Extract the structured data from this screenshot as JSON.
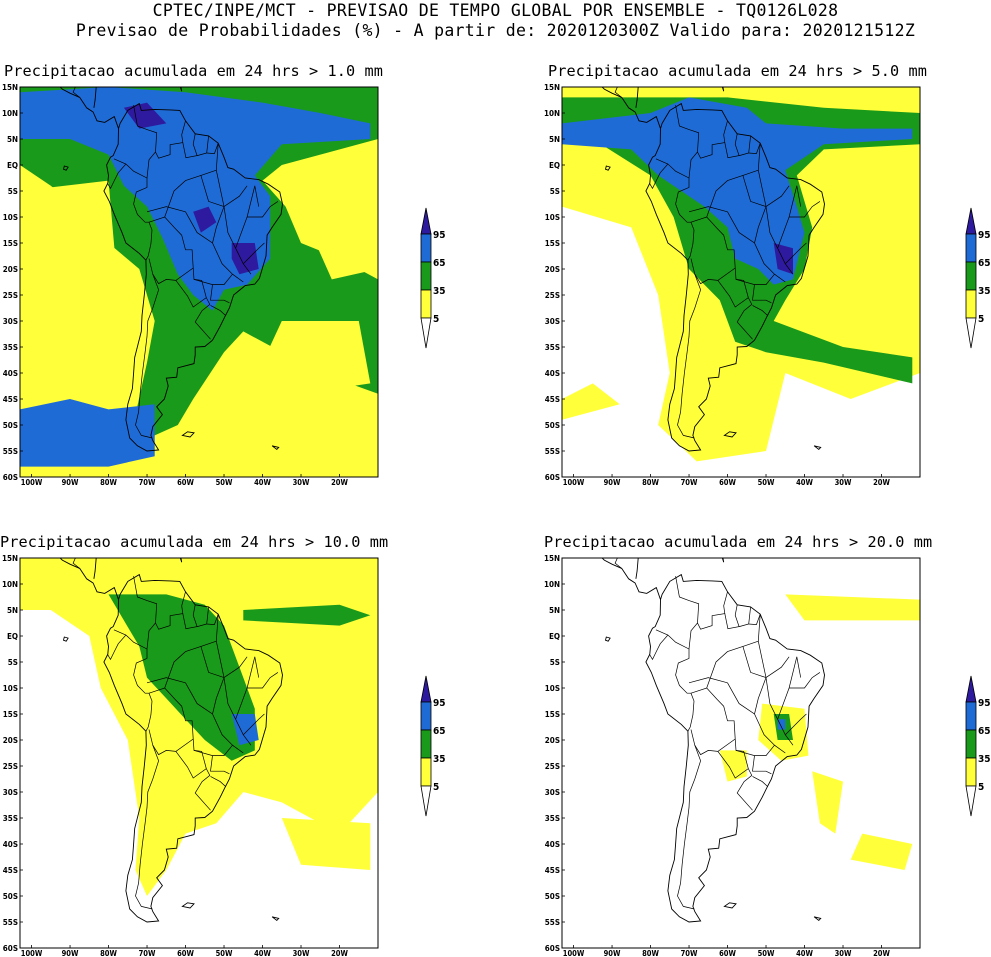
{
  "header": {
    "line1": "CPTEC/INPE/MCT - PREVISAO DE TEMPO GLOBAL POR ENSEMBLE - TQ0126L028",
    "line2": "Previsao de Probabilidades (%) -  A partir de: 2020120300Z  Valido para: 2020121512Z"
  },
  "colors": {
    "c5": "#ffff3a",
    "c35": "#1a9a1a",
    "c65": "#1f6bd6",
    "c95": "#2e1a9e",
    "coast": "#000000"
  },
  "axes": {
    "lat_labels": [
      "15N",
      "10N",
      "5N",
      "EQ",
      "5S",
      "10S",
      "15S",
      "20S",
      "25S",
      "30S",
      "35S",
      "40S",
      "45S",
      "50S",
      "55S",
      "60S"
    ],
    "lon_labels": [
      "100W",
      "90W",
      "80W",
      "70W",
      "60W",
      "50W",
      "40W",
      "30W",
      "20W"
    ]
  },
  "colorbar": {
    "levels": [
      "95",
      "65",
      "35",
      "5"
    ]
  },
  "panels": [
    {
      "title": "Precipitacao acumulada em 24 hrs > 1.0 mm"
    },
    {
      "title": "Precipitacao acumulada em 24 hrs > 5.0 mm"
    },
    {
      "title": "Precipitacao acumulada em 24 hrs > 10.0 mm"
    },
    {
      "title": "Precipitacao acumulada em 24 hrs > 20.0 mm"
    }
  ]
}
